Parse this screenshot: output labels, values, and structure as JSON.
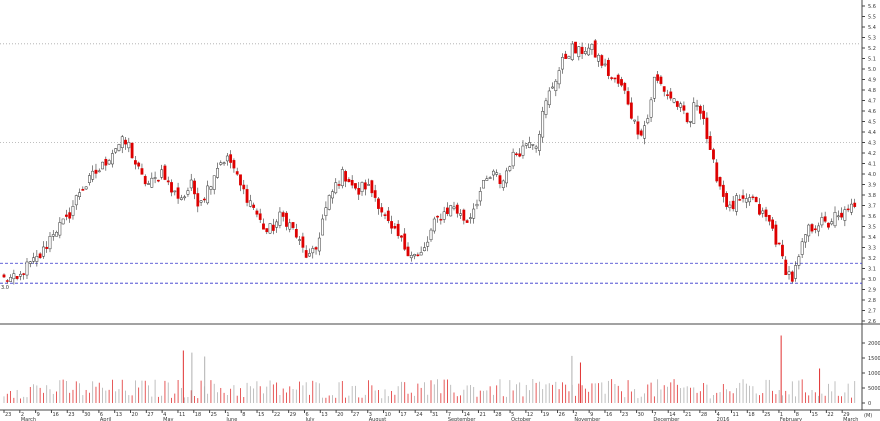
{
  "chart_data": [
    {
      "type": "candlestick",
      "panel": "price",
      "y_axis_side": "right",
      "ylim": [
        2.6,
        5.6
      ],
      "y_ticks": [
        "5.6",
        "5.5",
        "5.4",
        "5.3",
        "5.2",
        "5.1",
        "5.0",
        "4.9",
        "4.8",
        "4.7",
        "4.6",
        "4.5",
        "4.4",
        "4.3",
        "4.2",
        "4.1",
        "4.0",
        "3.9",
        "3.8",
        "3.7",
        "3.6",
        "3.5",
        "3.4",
        "3.3",
        "3.2",
        "3.1",
        "3.0",
        "2.9",
        "2.8",
        "2.7",
        "2.6"
      ],
      "y_values": [
        5.6,
        5.5,
        5.4,
        5.3,
        5.2,
        5.1,
        5.0,
        4.9,
        4.8,
        4.7,
        4.6,
        4.5,
        4.4,
        4.3,
        4.2,
        4.1,
        4.0,
        3.9,
        3.8,
        3.7,
        3.6,
        3.5,
        3.4,
        3.3,
        3.2,
        3.1,
        3.0,
        2.9,
        2.8,
        2.7,
        2.6
      ],
      "reference_lines": [
        {
          "value": 5.24,
          "style": "dotted",
          "color": "#aaaaaa"
        },
        {
          "value": 4.3,
          "style": "dotted",
          "color": "#aaaaaa"
        },
        {
          "value": 3.15,
          "style": "dashed",
          "color": "#3333cc"
        },
        {
          "value": 2.96,
          "style": "dashed",
          "color": "#3333cc"
        }
      ],
      "trend_closes": [
        3.0,
        3.0,
        2.98,
        3.1,
        3.15,
        3.2,
        3.3,
        3.45,
        3.5,
        3.55,
        3.7,
        3.85,
        3.9,
        4.0,
        4.05,
        4.15,
        4.25,
        4.3,
        4.28,
        4.1,
        3.95,
        3.9,
        3.95,
        4.05,
        3.85,
        3.8,
        3.78,
        3.9,
        3.75,
        3.8,
        3.95,
        4.1,
        4.15,
        4.1,
        3.9,
        3.8,
        3.7,
        3.55,
        3.45,
        3.5,
        3.6,
        3.55,
        3.45,
        3.3,
        3.2,
        3.25,
        3.55,
        3.75,
        3.9,
        4.0,
        3.95,
        3.8,
        3.9,
        3.85,
        3.75,
        3.6,
        3.45,
        3.4,
        3.3,
        3.25,
        3.2,
        3.3,
        3.5,
        3.6,
        3.65,
        3.7,
        3.6,
        3.55,
        3.7,
        3.85,
        3.95,
        4.0,
        3.9,
        4.1,
        4.2,
        4.25,
        4.35,
        4.3,
        4.6,
        4.8,
        4.95,
        5.1,
        5.2,
        5.15,
        5.2,
        5.18,
        5.1,
        5.0,
        4.9,
        4.85,
        4.75,
        4.5,
        4.4,
        4.5,
        4.9,
        4.85,
        4.75,
        4.7,
        4.6,
        4.45,
        4.7,
        4.6,
        4.2,
        4.0,
        3.8,
        3.65,
        3.75,
        3.7,
        3.8,
        3.65,
        3.6,
        3.5,
        3.3,
        3.1,
        3.0,
        3.2,
        3.45,
        3.5,
        3.55,
        3.5,
        3.6,
        3.55,
        3.7,
        3.65
      ],
      "candle_colors": {
        "up": "#ffffff",
        "down": "#dd0000",
        "outline": "#333333"
      }
    },
    {
      "type": "bar",
      "panel": "volume",
      "ylim": [
        0,
        25000
      ],
      "y_ticks": [
        "20000",
        "15000",
        "10000",
        "5000",
        "0"
      ],
      "y_values": [
        20000,
        15000,
        10000,
        5000,
        0
      ],
      "bar_colors": {
        "up": "#b0b0b0",
        "down": "#e03030"
      },
      "tall_spikes": [
        {
          "position": 0.21,
          "value": 17500,
          "color": "#e03030"
        },
        {
          "position": 0.22,
          "value": 16800,
          "color": "#b0b0b0"
        },
        {
          "position": 0.235,
          "value": 15500,
          "color": "#b0b0b0"
        },
        {
          "position": 0.665,
          "value": 15700,
          "color": "#b0b0b0"
        },
        {
          "position": 0.675,
          "value": 13500,
          "color": "#e03030"
        },
        {
          "position": 0.91,
          "value": 22500,
          "color": "#e03030"
        },
        {
          "position": 0.955,
          "value": 11500,
          "color": "#e03030"
        }
      ]
    }
  ],
  "x_axis": {
    "day_ticks": [
      "23",
      "2",
      "9",
      "16",
      "23",
      "30",
      "6",
      "13",
      "20",
      "27",
      "4",
      "11",
      "18",
      "25",
      "1",
      "8",
      "15",
      "22",
      "29",
      "6",
      "13",
      "20",
      "27",
      "3",
      "10",
      "17",
      "24",
      "31",
      "7",
      "14",
      "21",
      "28",
      "5",
      "12",
      "19",
      "26",
      "2",
      "9",
      "16",
      "23",
      "30",
      "7",
      "14",
      "21",
      "28",
      "4",
      "11",
      "18",
      "25",
      "1",
      "8",
      "15",
      "22",
      "29"
    ],
    "month_labels": [
      {
        "label": "March",
        "tick": 1
      },
      {
        "label": "April",
        "tick": 6
      },
      {
        "label": "May",
        "tick": 10
      },
      {
        "label": "June",
        "tick": 14
      },
      {
        "label": "July",
        "tick": 19
      },
      {
        "label": "August",
        "tick": 23
      },
      {
        "label": "September",
        "tick": 28
      },
      {
        "label": "October",
        "tick": 32
      },
      {
        "label": "November",
        "tick": 36
      },
      {
        "label": "December",
        "tick": 41
      },
      {
        "label": "2016",
        "tick": 45
      },
      {
        "label": "February",
        "tick": 49
      },
      {
        "label": "March",
        "tick": 53
      }
    ]
  },
  "start_price_label": "3.0",
  "corner_label": "(M)"
}
